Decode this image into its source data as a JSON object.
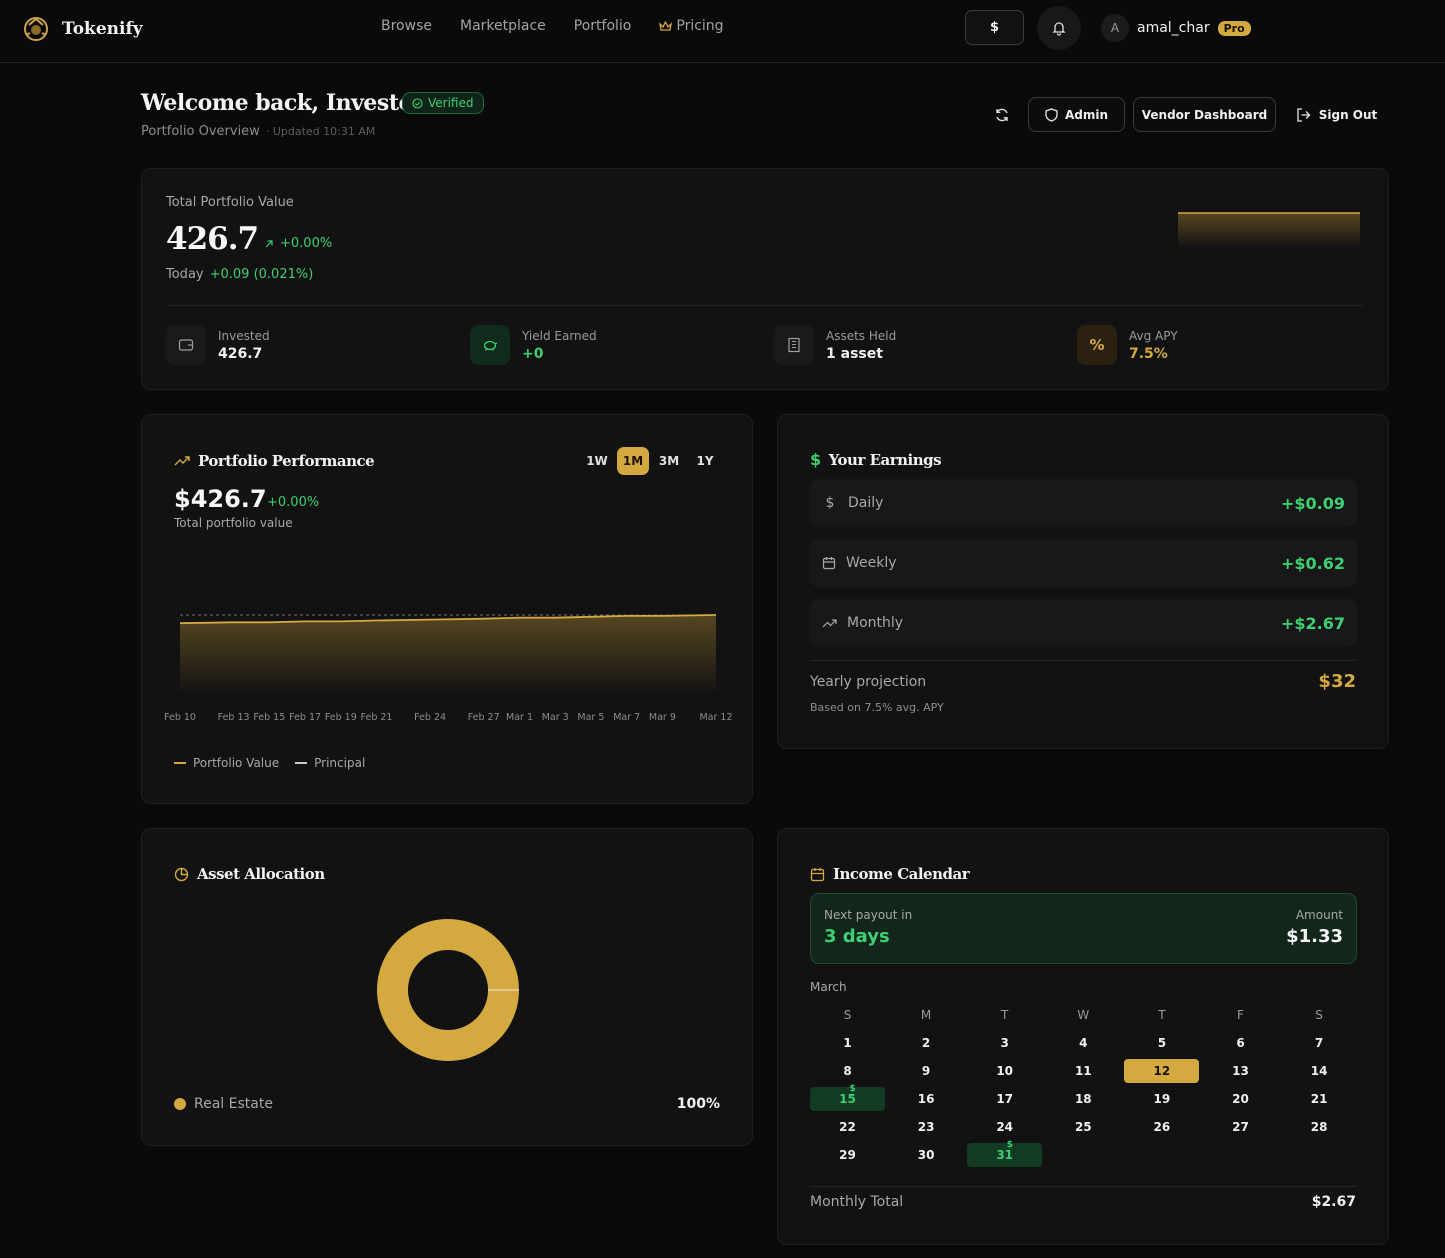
{
  "app": {
    "name": "Tokenify"
  },
  "nav": {
    "items": [
      "Browse",
      "Marketplace",
      "Portfolio",
      "Pricing"
    ]
  },
  "header": {
    "currency": "$",
    "user": {
      "initial": "A",
      "name": "amal_char",
      "badge": "Pro"
    }
  },
  "welcome": {
    "title": "Welcome back, Investor",
    "verified": "Verified",
    "subtitle": "Portfolio Overview",
    "updated": "· Updated 10:31 AM"
  },
  "actions": {
    "admin": "Admin",
    "vendor": "Vendor Dashboard",
    "signout": "Sign Out"
  },
  "summary": {
    "label": "Total Portfolio Value",
    "value": "426.7",
    "change": "+0.00%",
    "today_label": "Today",
    "today_value": "+0.09 (0.021%)",
    "stats": [
      {
        "label": "Invested",
        "value": "426.7",
        "icon": "wallet-icon"
      },
      {
        "label": "Yield Earned",
        "value": "+0",
        "icon": "piggy-bank-icon"
      },
      {
        "label": "Assets Held",
        "value": "1 asset",
        "icon": "building-icon"
      },
      {
        "label": "Avg APY",
        "value": "7.5%",
        "icon": "percent-icon"
      }
    ]
  },
  "performance": {
    "title": "Portfolio Performance",
    "ranges": [
      "1W",
      "1M",
      "3M",
      "1Y"
    ],
    "active_range": "1M",
    "value": "$426.7",
    "change": "+0.00%",
    "sublabel": "Total portfolio value",
    "legend": [
      "Portfolio Value",
      "Principal"
    ]
  },
  "chart_data": {
    "type": "area",
    "x": [
      "Feb 10",
      "Feb 13",
      "Feb 15",
      "Feb 17",
      "Feb 19",
      "Feb 21",
      "Feb 24",
      "Feb 27",
      "Mar 1",
      "Mar 3",
      "Mar 5",
      "Mar 7",
      "Mar 9",
      "Mar 12"
    ],
    "series": [
      {
        "name": "Portfolio Value",
        "values": [
          426.61,
          426.62,
          426.62,
          426.63,
          426.63,
          426.64,
          426.65,
          426.66,
          426.67,
          426.67,
          426.68,
          426.69,
          426.69,
          426.7
        ]
      },
      {
        "name": "Principal",
        "values": [
          426.7,
          426.7,
          426.7,
          426.7,
          426.7,
          426.7,
          426.7,
          426.7,
          426.7,
          426.7,
          426.7,
          426.7,
          426.7,
          426.7
        ]
      }
    ],
    "grid": false,
    "legend": "bottom-left",
    "colors": {
      "Portfolio Value": "#d4a93f",
      "Principal": "#cccccc"
    }
  },
  "earnings": {
    "title": "Your Earnings",
    "rows": [
      {
        "label": "Daily",
        "value": "+$0.09",
        "icon": "dollar-icon"
      },
      {
        "label": "Weekly",
        "value": "+$0.62",
        "icon": "calendar-icon"
      },
      {
        "label": "Monthly",
        "value": "+$2.67",
        "icon": "trend-up-icon"
      }
    ],
    "projection_label": "Yearly projection",
    "projection_value": "$32",
    "projection_note": "Based on 7.5% avg. APY"
  },
  "allocation": {
    "title": "Asset Allocation",
    "items": [
      {
        "label": "Real Estate",
        "percent": "100%",
        "share": 1.0,
        "color": "#d4a93f"
      }
    ]
  },
  "calendar": {
    "title": "Income Calendar",
    "next_label": "Next payout in",
    "next_value": "3 days",
    "amount_label": "Amount",
    "amount_value": "$1.33",
    "month": "March",
    "weekdays": [
      "S",
      "M",
      "T",
      "W",
      "T",
      "F",
      "S"
    ],
    "today": 12,
    "payout_days": [
      15,
      31
    ],
    "payout_marker": "$",
    "first_weekday": 0,
    "days_in_month": 31,
    "total_label": "Monthly Total",
    "total_value": "$2.67"
  },
  "colors": {
    "accent": "#d4a93f",
    "positive": "#3ecf72",
    "background": "#0a0a0a",
    "card": "#121212"
  }
}
